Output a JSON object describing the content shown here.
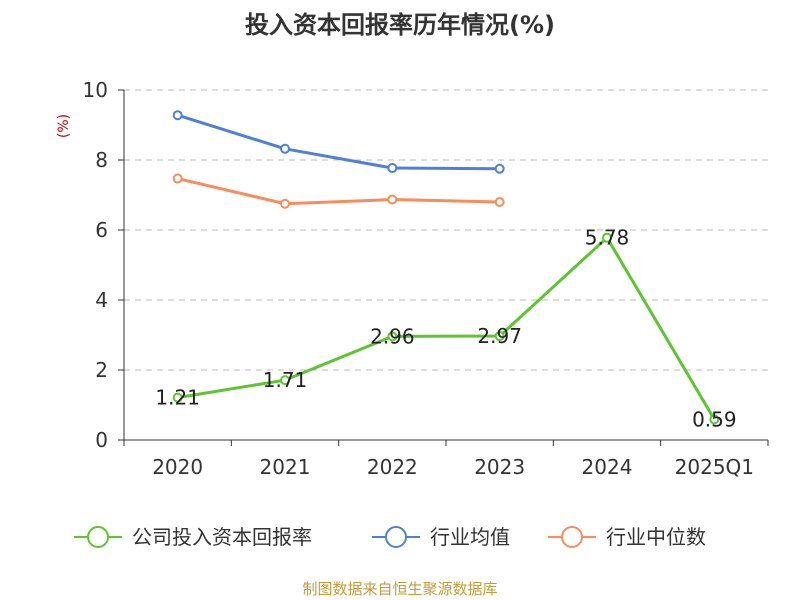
{
  "chart_data": {
    "type": "line",
    "title": "投入资本回报率历年情况(%)",
    "ylabel": "(%)",
    "categories": [
      "2020",
      "2021",
      "2022",
      "2023",
      "2024",
      "2025Q1"
    ],
    "ylim": [
      0,
      10
    ],
    "yticks": [
      0,
      2,
      4,
      6,
      8,
      10
    ],
    "grid": true,
    "legend_position": "bottom",
    "series": [
      {
        "name": "公司投入资本回报率",
        "color": "#5ec431",
        "values": [
          1.21,
          1.71,
          2.96,
          2.97,
          5.78,
          0.59
        ],
        "data_labels": [
          "1.21",
          "1.71",
          "2.96",
          "2.97",
          "5.78",
          "0.59"
        ]
      },
      {
        "name": "行业均值",
        "color": "#4e7fdd",
        "values": [
          9.28,
          8.32,
          7.77,
          7.75,
          null,
          null
        ]
      },
      {
        "name": "行业中位数",
        "color": "#f98c5a",
        "values": [
          7.47,
          6.75,
          6.87,
          6.8,
          null,
          null
        ]
      }
    ]
  },
  "footer": {
    "source": "制图数据来自恒生聚源数据库",
    "source_color": "#c49a3a"
  },
  "colors": {
    "unit_label": "#cc0000"
  }
}
